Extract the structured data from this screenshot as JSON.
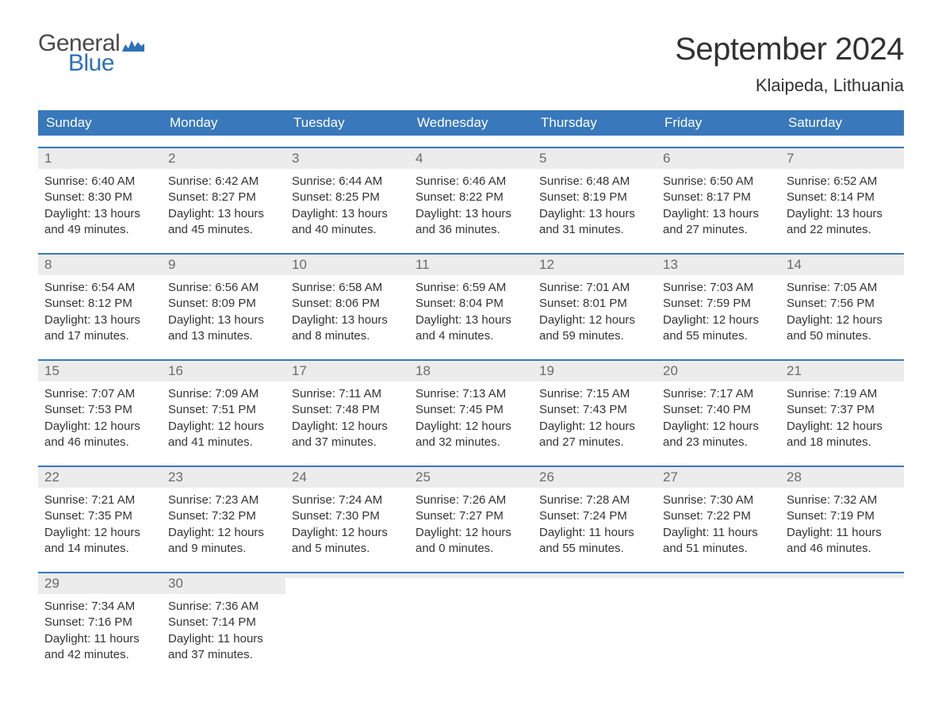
{
  "logo": {
    "word1": "General",
    "word2": "Blue",
    "flag_color": "#2c71b8"
  },
  "title": "September 2024",
  "subtitle": "Klaipeda, Lithuania",
  "colors": {
    "header_bg": "#3878bb",
    "header_text": "#ffffff",
    "daynum_bg": "#ececec",
    "daynum_text": "#6b6b6b",
    "body_text": "#343434",
    "week_border": "#3878bb",
    "page_bg": "#ffffff"
  },
  "typography": {
    "title_fontsize": 40,
    "subtitle_fontsize": 22,
    "weekday_fontsize": 17,
    "daynum_fontsize": 17,
    "cell_fontsize": 15
  },
  "weekdays": [
    "Sunday",
    "Monday",
    "Tuesday",
    "Wednesday",
    "Thursday",
    "Friday",
    "Saturday"
  ],
  "weeks": [
    [
      {
        "n": "1",
        "sunrise": "Sunrise: 6:40 AM",
        "sunset": "Sunset: 8:30 PM",
        "d1": "Daylight: 13 hours",
        "d2": "and 49 minutes."
      },
      {
        "n": "2",
        "sunrise": "Sunrise: 6:42 AM",
        "sunset": "Sunset: 8:27 PM",
        "d1": "Daylight: 13 hours",
        "d2": "and 45 minutes."
      },
      {
        "n": "3",
        "sunrise": "Sunrise: 6:44 AM",
        "sunset": "Sunset: 8:25 PM",
        "d1": "Daylight: 13 hours",
        "d2": "and 40 minutes."
      },
      {
        "n": "4",
        "sunrise": "Sunrise: 6:46 AM",
        "sunset": "Sunset: 8:22 PM",
        "d1": "Daylight: 13 hours",
        "d2": "and 36 minutes."
      },
      {
        "n": "5",
        "sunrise": "Sunrise: 6:48 AM",
        "sunset": "Sunset: 8:19 PM",
        "d1": "Daylight: 13 hours",
        "d2": "and 31 minutes."
      },
      {
        "n": "6",
        "sunrise": "Sunrise: 6:50 AM",
        "sunset": "Sunset: 8:17 PM",
        "d1": "Daylight: 13 hours",
        "d2": "and 27 minutes."
      },
      {
        "n": "7",
        "sunrise": "Sunrise: 6:52 AM",
        "sunset": "Sunset: 8:14 PM",
        "d1": "Daylight: 13 hours",
        "d2": "and 22 minutes."
      }
    ],
    [
      {
        "n": "8",
        "sunrise": "Sunrise: 6:54 AM",
        "sunset": "Sunset: 8:12 PM",
        "d1": "Daylight: 13 hours",
        "d2": "and 17 minutes."
      },
      {
        "n": "9",
        "sunrise": "Sunrise: 6:56 AM",
        "sunset": "Sunset: 8:09 PM",
        "d1": "Daylight: 13 hours",
        "d2": "and 13 minutes."
      },
      {
        "n": "10",
        "sunrise": "Sunrise: 6:58 AM",
        "sunset": "Sunset: 8:06 PM",
        "d1": "Daylight: 13 hours",
        "d2": "and 8 minutes."
      },
      {
        "n": "11",
        "sunrise": "Sunrise: 6:59 AM",
        "sunset": "Sunset: 8:04 PM",
        "d1": "Daylight: 13 hours",
        "d2": "and 4 minutes."
      },
      {
        "n": "12",
        "sunrise": "Sunrise: 7:01 AM",
        "sunset": "Sunset: 8:01 PM",
        "d1": "Daylight: 12 hours",
        "d2": "and 59 minutes."
      },
      {
        "n": "13",
        "sunrise": "Sunrise: 7:03 AM",
        "sunset": "Sunset: 7:59 PM",
        "d1": "Daylight: 12 hours",
        "d2": "and 55 minutes."
      },
      {
        "n": "14",
        "sunrise": "Sunrise: 7:05 AM",
        "sunset": "Sunset: 7:56 PM",
        "d1": "Daylight: 12 hours",
        "d2": "and 50 minutes."
      }
    ],
    [
      {
        "n": "15",
        "sunrise": "Sunrise: 7:07 AM",
        "sunset": "Sunset: 7:53 PM",
        "d1": "Daylight: 12 hours",
        "d2": "and 46 minutes."
      },
      {
        "n": "16",
        "sunrise": "Sunrise: 7:09 AM",
        "sunset": "Sunset: 7:51 PM",
        "d1": "Daylight: 12 hours",
        "d2": "and 41 minutes."
      },
      {
        "n": "17",
        "sunrise": "Sunrise: 7:11 AM",
        "sunset": "Sunset: 7:48 PM",
        "d1": "Daylight: 12 hours",
        "d2": "and 37 minutes."
      },
      {
        "n": "18",
        "sunrise": "Sunrise: 7:13 AM",
        "sunset": "Sunset: 7:45 PM",
        "d1": "Daylight: 12 hours",
        "d2": "and 32 minutes."
      },
      {
        "n": "19",
        "sunrise": "Sunrise: 7:15 AM",
        "sunset": "Sunset: 7:43 PM",
        "d1": "Daylight: 12 hours",
        "d2": "and 27 minutes."
      },
      {
        "n": "20",
        "sunrise": "Sunrise: 7:17 AM",
        "sunset": "Sunset: 7:40 PM",
        "d1": "Daylight: 12 hours",
        "d2": "and 23 minutes."
      },
      {
        "n": "21",
        "sunrise": "Sunrise: 7:19 AM",
        "sunset": "Sunset: 7:37 PM",
        "d1": "Daylight: 12 hours",
        "d2": "and 18 minutes."
      }
    ],
    [
      {
        "n": "22",
        "sunrise": "Sunrise: 7:21 AM",
        "sunset": "Sunset: 7:35 PM",
        "d1": "Daylight: 12 hours",
        "d2": "and 14 minutes."
      },
      {
        "n": "23",
        "sunrise": "Sunrise: 7:23 AM",
        "sunset": "Sunset: 7:32 PM",
        "d1": "Daylight: 12 hours",
        "d2": "and 9 minutes."
      },
      {
        "n": "24",
        "sunrise": "Sunrise: 7:24 AM",
        "sunset": "Sunset: 7:30 PM",
        "d1": "Daylight: 12 hours",
        "d2": "and 5 minutes."
      },
      {
        "n": "25",
        "sunrise": "Sunrise: 7:26 AM",
        "sunset": "Sunset: 7:27 PM",
        "d1": "Daylight: 12 hours",
        "d2": "and 0 minutes."
      },
      {
        "n": "26",
        "sunrise": "Sunrise: 7:28 AM",
        "sunset": "Sunset: 7:24 PM",
        "d1": "Daylight: 11 hours",
        "d2": "and 55 minutes."
      },
      {
        "n": "27",
        "sunrise": "Sunrise: 7:30 AM",
        "sunset": "Sunset: 7:22 PM",
        "d1": "Daylight: 11 hours",
        "d2": "and 51 minutes."
      },
      {
        "n": "28",
        "sunrise": "Sunrise: 7:32 AM",
        "sunset": "Sunset: 7:19 PM",
        "d1": "Daylight: 11 hours",
        "d2": "and 46 minutes."
      }
    ],
    [
      {
        "n": "29",
        "sunrise": "Sunrise: 7:34 AM",
        "sunset": "Sunset: 7:16 PM",
        "d1": "Daylight: 11 hours",
        "d2": "and 42 minutes."
      },
      {
        "n": "30",
        "sunrise": "Sunrise: 7:36 AM",
        "sunset": "Sunset: 7:14 PM",
        "d1": "Daylight: 11 hours",
        "d2": "and 37 minutes."
      },
      {
        "empty": true
      },
      {
        "empty": true
      },
      {
        "empty": true
      },
      {
        "empty": true
      },
      {
        "empty": true
      }
    ]
  ]
}
